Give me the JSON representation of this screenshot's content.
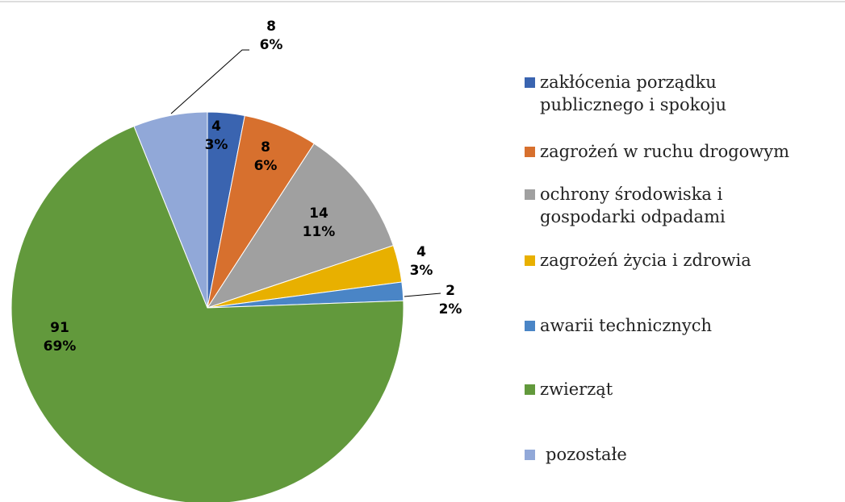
{
  "chart_data": {
    "type": "pie",
    "categories": [
      "zakłócenia porządku publicznego i spokoju",
      "zagrożeń w ruchu drogowym",
      "ochrony środowiska i gospodarki odpadami",
      "zagrożeń życia i zdrowia",
      "awarii technicznych",
      "zwierząt",
      "pozostałe"
    ],
    "values": [
      4,
      8,
      14,
      4,
      2,
      91,
      8
    ],
    "percent_labels": [
      "3%",
      "6%",
      "11%",
      "3%",
      "2%",
      "69%",
      "6%"
    ],
    "colors": [
      "#3a64b0",
      "#d7702e",
      "#a0a0a0",
      "#e8b000",
      "#4a85c6",
      "#62993c",
      "#91a8d8"
    ],
    "legend": "right"
  }
}
